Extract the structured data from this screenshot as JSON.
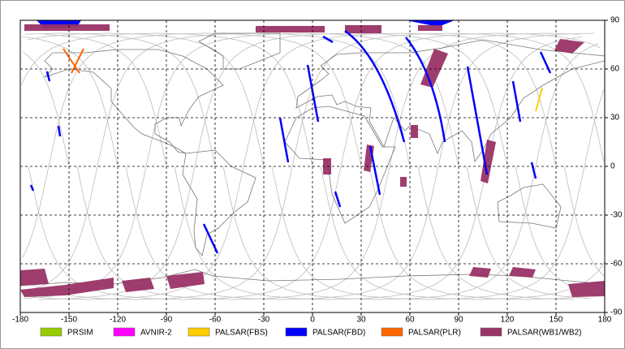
{
  "map": {
    "xlim": [
      -180,
      180
    ],
    "ylim": [
      -90,
      90
    ],
    "xticks": [
      -180,
      -150,
      -120,
      -90,
      -60,
      -30,
      0,
      30,
      60,
      90,
      120,
      150,
      180
    ],
    "yticks": [
      90,
      60,
      30,
      0,
      -30,
      -60,
      -90
    ],
    "grid": true,
    "legend": [
      {
        "label": "PRSIM",
        "color": "#99cc00"
      },
      {
        "label": "AVNIR-2",
        "color": "#ff00ff"
      },
      {
        "label": "PALSAR(FBS)",
        "color": "#ffcc00"
      },
      {
        "label": "PALSAR(FBD)",
        "color": "#0000ff"
      },
      {
        "label": "PALSAR(PLR)",
        "color": "#ff6600"
      },
      {
        "label": "PALSAR(WB1/WB2)",
        "color": "#993366"
      }
    ]
  }
}
